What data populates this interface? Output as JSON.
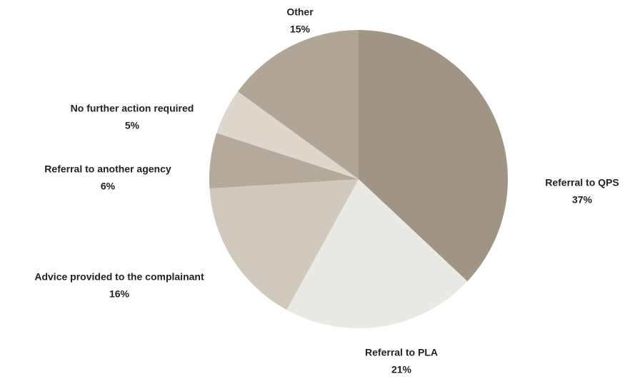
{
  "chart_data": {
    "type": "pie",
    "categories": [
      "Referral to QPS",
      "Referral to PLA",
      "Advice provided to the complainant",
      "Referral to another agency",
      "No further action required",
      "Other"
    ],
    "values": [
      37,
      21,
      16,
      6,
      5,
      15
    ],
    "value_labels": [
      "37%",
      "21%",
      "16%",
      "6%",
      "5%",
      "15%"
    ],
    "colors": [
      "#a09585",
      "#ebe9e3",
      "#d0c9bd",
      "#b3aa9c",
      "#ddd7cd",
      "#b0a698"
    ]
  }
}
